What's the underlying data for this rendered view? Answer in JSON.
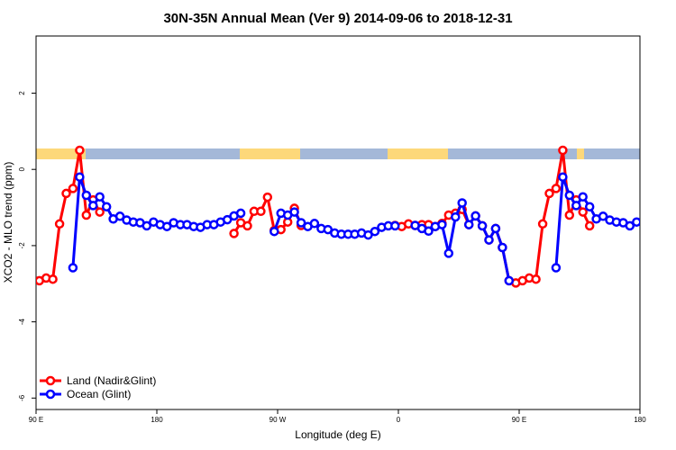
{
  "chart_data": {
    "type": "line",
    "title": "30N-35N Annual Mean (Ver 9)   2014-09-06 to 2018-12-31",
    "xlabel": "Longitude (deg E)",
    "ylabel": "XCO2 - MLO trend (ppm)",
    "xlim": [
      90,
      540
    ],
    "ylim": [
      -6.3,
      3.5
    ],
    "x_ticks": [
      {
        "value": 90,
        "label": "90 E"
      },
      {
        "value": 180,
        "label": "180"
      },
      {
        "value": 270,
        "label": "90 W"
      },
      {
        "value": 360,
        "label": "0"
      },
      {
        "value": 450,
        "label": "90 E"
      },
      {
        "value": 540,
        "label": "180"
      }
    ],
    "y_ticks": [
      {
        "value": 2,
        "label": "2"
      },
      {
        "value": 0,
        "label": "0"
      },
      {
        "value": -2,
        "label": "-2"
      },
      {
        "value": -4,
        "label": "-4"
      },
      {
        "value": -6,
        "label": "-6"
      }
    ],
    "grid": false,
    "legend_position": "bottom-left",
    "land_mask_colors": {
      "land": "#fdd87a",
      "ocean": "#a4b8d8"
    },
    "series": [
      {
        "name": "Land (Nadir&Glint)",
        "color": "#ff0000",
        "segments": [
          {
            "x": [
              92.5,
              97.5,
              102.5,
              107.5,
              112.5,
              117.5,
              122.5,
              127.5,
              132.5,
              137.5
            ],
            "y": [
              -2.92,
              -2.85,
              -2.88,
              -1.43,
              -0.63,
              -0.5,
              0.5,
              -1.2,
              -0.8,
              -1.12
            ]
          },
          {
            "x": [
              237.5,
              242.5,
              247.5,
              252.5,
              257.5,
              262.5,
              267.5,
              272.5,
              277.5,
              282.5,
              287.5
            ],
            "y": [
              -1.68,
              -1.4,
              -1.48,
              -1.1,
              -1.1,
              -0.73,
              -1.6,
              -1.58,
              -1.38,
              -1.02,
              -1.47
            ]
          },
          {
            "x": [
              357.5,
              362.5,
              367.5,
              372.5,
              377.5,
              382.5,
              387.5,
              392.5,
              397.5,
              402.5,
              407.5,
              412.5,
              417.5,
              422.5,
              427.5,
              432.5,
              437.5,
              442.5,
              447.5,
              452.5,
              457.5,
              462.5,
              467.5,
              472.5,
              477.5,
              482.5,
              487.5,
              492.5,
              497.5,
              502.5
            ],
            "y": [
              -1.47,
              -1.5,
              -1.43,
              -1.47,
              -1.45,
              -1.45,
              -1.5,
              -1.42,
              -1.2,
              -1.15,
              -1.05,
              -1.45,
              -1.22,
              -1.48,
              -1.85,
              -1.55,
              -2.05,
              -2.92,
              -2.98,
              -2.92,
              -2.85,
              -2.88,
              -1.43,
              -0.63,
              -0.5,
              0.5,
              -1.2,
              -0.8,
              -1.12,
              -1.48
            ]
          }
        ]
      },
      {
        "name": "Ocean (Glint)",
        "color": "#0000ff",
        "segments": [
          {
            "x": [
              117.5,
              122.5,
              127.5,
              132.5,
              137.5,
              142.5,
              147.5,
              152.5,
              157.5,
              162.5,
              167.5,
              172.5,
              177.5,
              182.5,
              187.5,
              192.5,
              197.5,
              202.5,
              207.5,
              212.5,
              217.5,
              222.5,
              227.5,
              232.5,
              237.5,
              242.5
            ],
            "y": [
              -2.58,
              -0.2,
              -0.68,
              -0.95,
              -0.72,
              -0.98,
              -1.3,
              -1.23,
              -1.33,
              -1.38,
              -1.4,
              -1.48,
              -1.38,
              -1.45,
              -1.5,
              -1.4,
              -1.45,
              -1.45,
              -1.5,
              -1.52,
              -1.45,
              -1.45,
              -1.38,
              -1.32,
              -1.22,
              -1.15
            ]
          },
          {
            "x": [
              267.5,
              272.5,
              277.5,
              282.5,
              287.5,
              292.5,
              297.5,
              302.5,
              307.5,
              312.5,
              317.5,
              322.5,
              327.5,
              332.5,
              337.5,
              342.5,
              347.5,
              352.5,
              357.5
            ],
            "y": [
              -1.63,
              -1.15,
              -1.2,
              -1.12,
              -1.4,
              -1.5,
              -1.42,
              -1.55,
              -1.58,
              -1.67,
              -1.7,
              -1.7,
              -1.7,
              -1.67,
              -1.72,
              -1.63,
              -1.52,
              -1.48,
              -1.48
            ]
          },
          {
            "x": [
              372.5,
              377.5,
              382.5,
              387.5,
              392.5,
              397.5,
              402.5,
              407.5,
              412.5,
              417.5,
              422.5,
              427.5,
              432.5,
              437.5,
              442.5
            ],
            "y": [
              -1.47,
              -1.55,
              -1.62,
              -1.5,
              -1.45,
              -2.2,
              -1.25,
              -0.88,
              -1.45,
              -1.22,
              -1.48,
              -1.85,
              -1.55,
              -2.05,
              -2.92
            ]
          },
          {
            "x": [
              477.5,
              482.5,
              487.5,
              492.5,
              497.5,
              502.5,
              507.5,
              512.5,
              517.5,
              522.5,
              527.5,
              532.5,
              537.5
            ],
            "y": [
              -2.58,
              -0.2,
              -0.68,
              -0.95,
              -0.72,
              -0.98,
              -1.3,
              -1.23,
              -1.33,
              -1.38,
              -1.4,
              -1.48,
              -1.38
            ]
          }
        ]
      }
    ]
  }
}
